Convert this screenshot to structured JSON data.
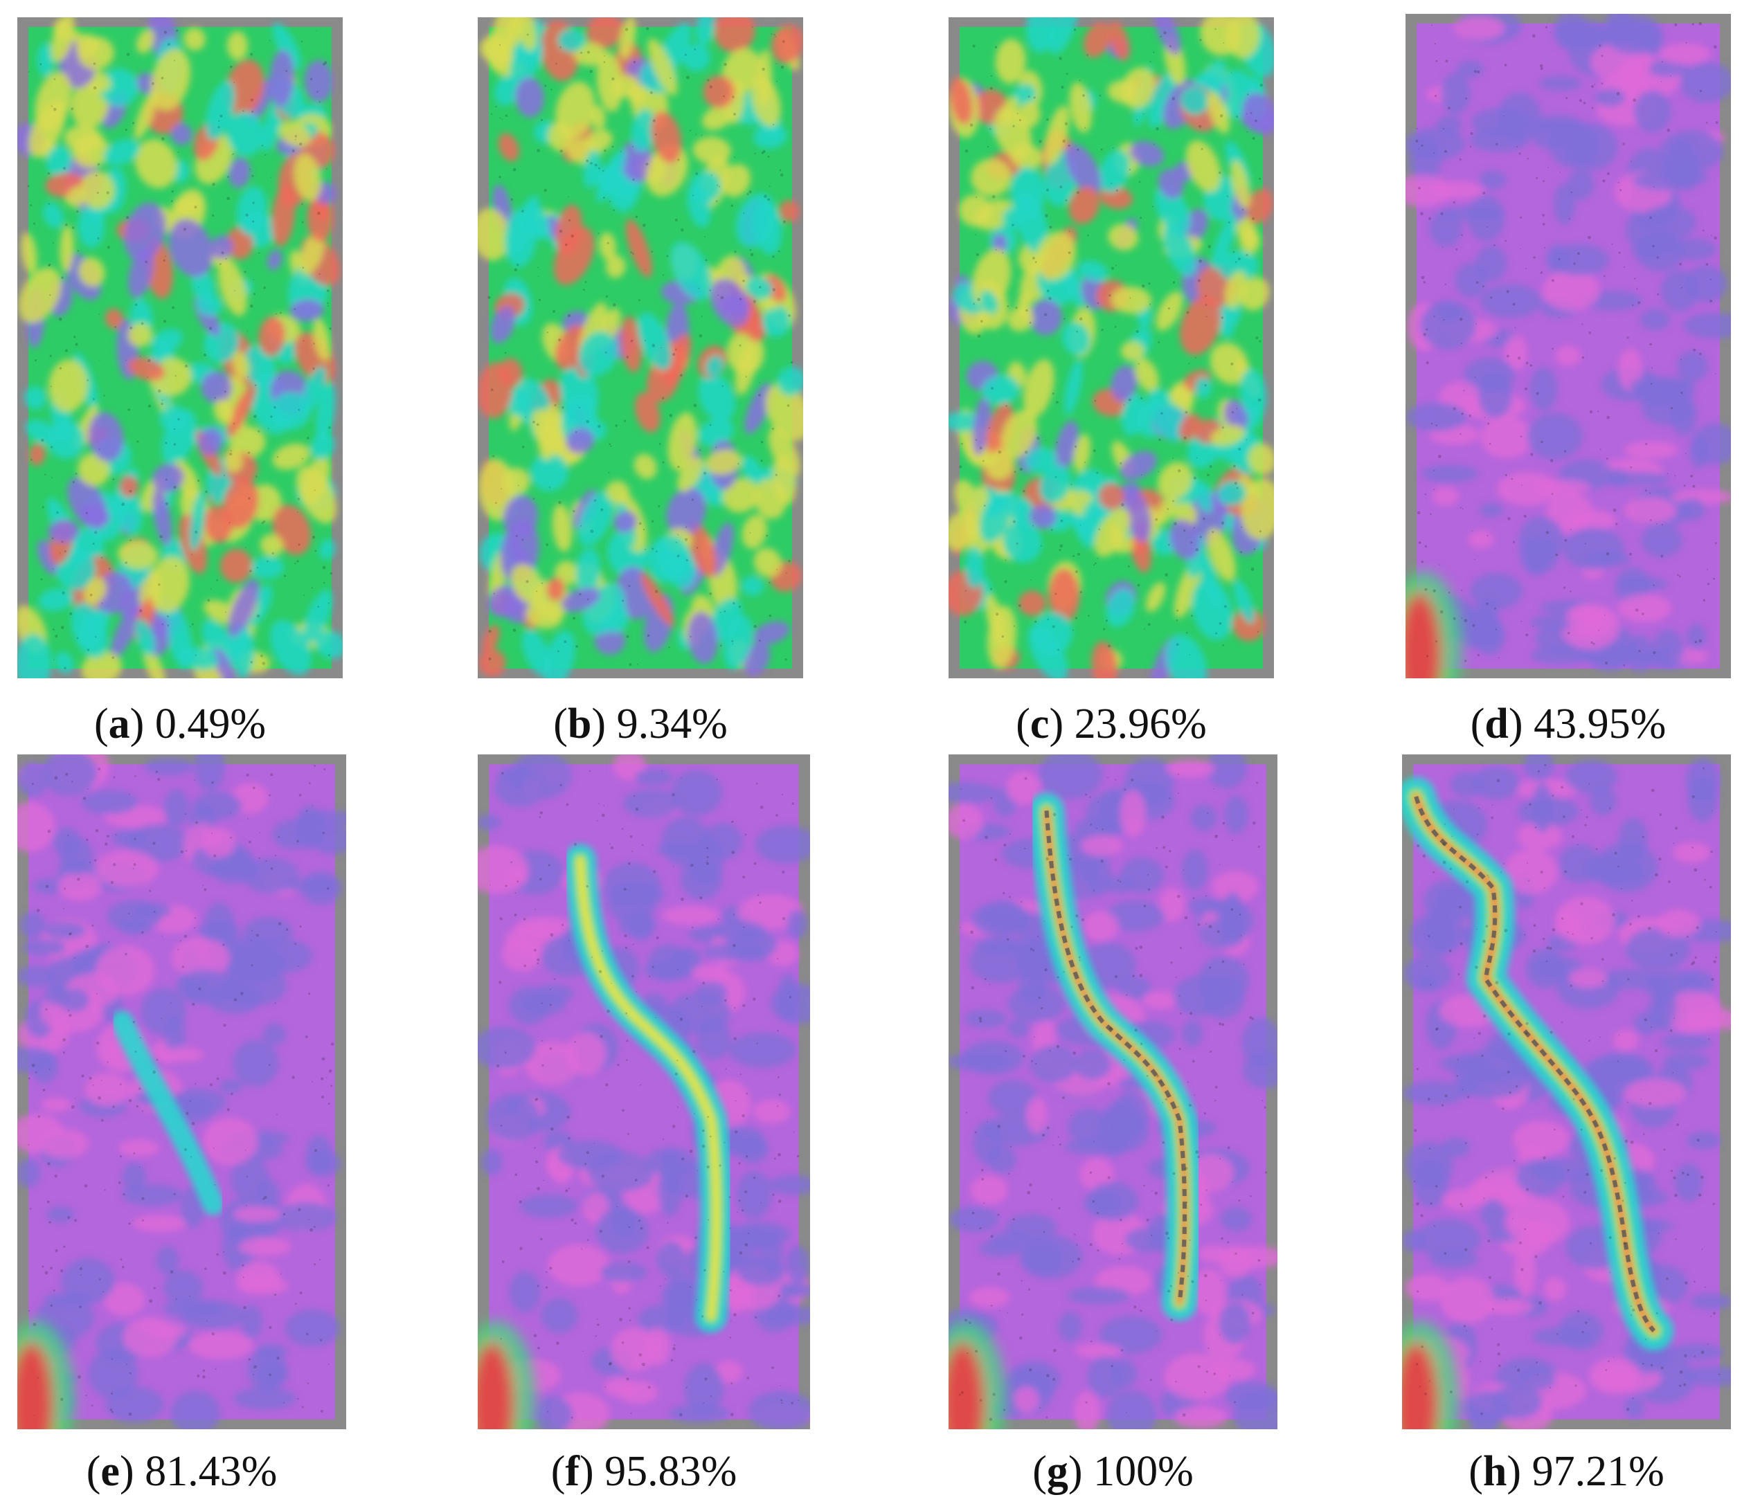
{
  "panels": [
    {
      "letter": "a",
      "value": "0.49%",
      "phase": "early",
      "level": 0.0
    },
    {
      "letter": "b",
      "value": "9.34%",
      "phase": "early",
      "level": 0.05
    },
    {
      "letter": "c",
      "value": "23.96%",
      "phase": "early",
      "level": 0.1
    },
    {
      "letter": "d",
      "value": "43.95%",
      "phase": "late",
      "level": 0.0
    },
    {
      "letter": "e",
      "value": "81.43%",
      "phase": "late",
      "level": 0.3
    },
    {
      "letter": "f",
      "value": "95.83%",
      "phase": "late",
      "level": 0.7
    },
    {
      "letter": "g",
      "value": "100%",
      "phase": "late",
      "level": 0.85
    },
    {
      "letter": "h",
      "value": "97.21%",
      "phase": "late",
      "level": 1.0
    }
  ],
  "colors": {
    "frame": "#8a8a8a",
    "early_base": "#2ecc66",
    "early_cyan": "#22d6c8",
    "early_yellow": "#d8dc52",
    "early_red": "#f06a5a",
    "early_violet": "#8a6ee0",
    "late_base": "#b466dc",
    "late_blue": "#7f6fd8",
    "late_pink": "#e06ad8",
    "band_cyan": "#2ad6cf",
    "band_green": "#3ee07a",
    "band_yellow": "#e6e24a",
    "band_red": "#ef5050",
    "corner_red": "#e04848"
  }
}
